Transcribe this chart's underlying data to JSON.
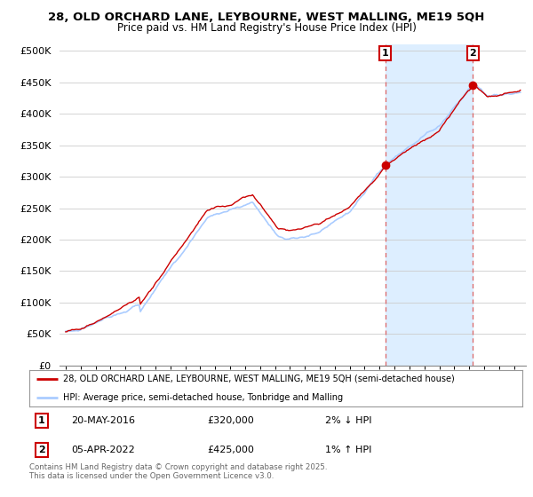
{
  "title_line1": "28, OLD ORCHARD LANE, LEYBOURNE, WEST MALLING, ME19 5QH",
  "title_line2": "Price paid vs. HM Land Registry's House Price Index (HPI)",
  "ytick_labels": [
    "£0",
    "£50K",
    "£100K",
    "£150K",
    "£200K",
    "£250K",
    "£300K",
    "£350K",
    "£400K",
    "£450K",
    "£500K"
  ],
  "ytick_values": [
    0,
    50000,
    100000,
    150000,
    200000,
    250000,
    300000,
    350000,
    400000,
    450000,
    500000
  ],
  "ylim": [
    0,
    510000
  ],
  "hpi_color": "#aaccff",
  "price_color": "#cc0000",
  "vline_color": "#dd6666",
  "shade_color": "#ddeeff",
  "marker_box_color": "#cc0000",
  "legend_line1": "28, OLD ORCHARD LANE, LEYBOURNE, WEST MALLING, ME19 5QH (semi-detached house)",
  "legend_line2": "HPI: Average price, semi-detached house, Tonbridge and Malling",
  "annotation1_date": "20-MAY-2016",
  "annotation1_price": "£320,000",
  "annotation1_hpi": "2% ↓ HPI",
  "annotation2_date": "05-APR-2022",
  "annotation2_price": "£425,000",
  "annotation2_hpi": "1% ↑ HPI",
  "footer": "Contains HM Land Registry data © Crown copyright and database right 2025.\nThis data is licensed under the Open Government Licence v3.0.",
  "background_color": "#ffffff",
  "grid_color": "#cccccc",
  "year_start": 1995,
  "year_end": 2025,
  "marker1_year": 2016.38,
  "marker1_value": 320000,
  "marker2_year": 2022.25,
  "marker2_value": 425000
}
